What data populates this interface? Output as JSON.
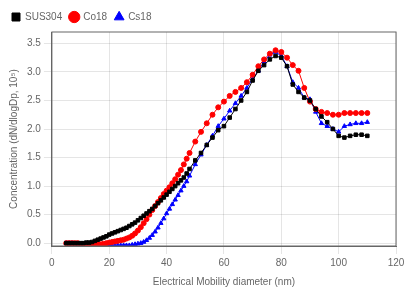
{
  "chart_data": {
    "type": "line",
    "xlabel": "Electrical Mobility diameter (nm)",
    "ylabel": "Concentration (dN/dlogDp, 10⁵)",
    "x": [
      5,
      6,
      7,
      8,
      9,
      10,
      11,
      12,
      13,
      14,
      15,
      16,
      17,
      18,
      19,
      20,
      21,
      22,
      23,
      24,
      25,
      26,
      27,
      28,
      29,
      30,
      31,
      32,
      33,
      34,
      35,
      36,
      37,
      38,
      39,
      40,
      41,
      42,
      43,
      44,
      45,
      46,
      47,
      48,
      50,
      52,
      54,
      56,
      58,
      60,
      62,
      64,
      66,
      68,
      70,
      72,
      74,
      76,
      78,
      80,
      82,
      84,
      86,
      88,
      90,
      92,
      94,
      96,
      98,
      100,
      102,
      104,
      106,
      108,
      110
    ],
    "series": [
      {
        "name": "SUS304",
        "color": "black",
        "marker": "square",
        "values": [
          0.0,
          0.0,
          0.0,
          0.0,
          0.0,
          0.0,
          0.0,
          0.01,
          0.01,
          0.02,
          0.04,
          0.06,
          0.08,
          0.1,
          0.12,
          0.15,
          0.17,
          0.19,
          0.21,
          0.23,
          0.25,
          0.27,
          0.3,
          0.33,
          0.36,
          0.4,
          0.44,
          0.48,
          0.52,
          0.56,
          0.6,
          0.65,
          0.7,
          0.75,
          0.8,
          0.85,
          0.9,
          0.95,
          1.0,
          1.05,
          1.1,
          1.15,
          1.22,
          1.3,
          1.45,
          1.58,
          1.72,
          1.85,
          1.98,
          2.05,
          2.2,
          2.35,
          2.5,
          2.65,
          2.85,
          3.02,
          3.12,
          3.22,
          3.28,
          3.25,
          3.1,
          2.78,
          2.65,
          2.55,
          2.5,
          2.35,
          2.22,
          2.12,
          2.0,
          1.88,
          1.85,
          1.88,
          1.9,
          1.9,
          1.88
        ]
      },
      {
        "name": "Co18",
        "color": "red",
        "marker": "circle",
        "values": [
          0.0,
          0.0,
          0.0,
          0.0,
          0.0,
          -0.02,
          -0.02,
          -0.02,
          -0.02,
          -0.02,
          -0.02,
          -0.02,
          -0.02,
          -0.01,
          0.0,
          0.01,
          0.02,
          0.03,
          0.04,
          0.05,
          0.06,
          0.08,
          0.1,
          0.13,
          0.17,
          0.22,
          0.28,
          0.35,
          0.42,
          0.5,
          0.58,
          0.65,
          0.72,
          0.79,
          0.86,
          0.92,
          0.98,
          1.05,
          1.12,
          1.2,
          1.28,
          1.38,
          1.48,
          1.58,
          1.78,
          1.95,
          2.1,
          2.25,
          2.38,
          2.48,
          2.58,
          2.65,
          2.72,
          2.82,
          2.95,
          3.1,
          3.22,
          3.32,
          3.38,
          3.35,
          3.25,
          3.12,
          3.02,
          2.72,
          2.48,
          2.35,
          2.3,
          2.28,
          2.25,
          2.25,
          2.28,
          2.28,
          2.28,
          2.28,
          2.28
        ]
      },
      {
        "name": "Cs18",
        "color": "blue",
        "marker": "triangle",
        "values": [
          0.0,
          0.0,
          0.0,
          -0.02,
          -0.02,
          -0.02,
          -0.02,
          -0.03,
          -0.04,
          -0.04,
          -0.04,
          -0.04,
          -0.04,
          -0.04,
          -0.04,
          -0.04,
          -0.04,
          -0.04,
          -0.04,
          -0.04,
          -0.04,
          -0.04,
          -0.04,
          -0.03,
          -0.02,
          -0.01,
          0.0,
          0.02,
          0.05,
          0.09,
          0.14,
          0.2,
          0.27,
          0.35,
          0.43,
          0.52,
          0.6,
          0.68,
          0.76,
          0.84,
          0.92,
          1.0,
          1.08,
          1.18,
          1.38,
          1.55,
          1.72,
          1.88,
          2.05,
          2.18,
          2.32,
          2.45,
          2.58,
          2.72,
          2.88,
          3.02,
          3.18,
          3.3,
          3.35,
          3.28,
          3.1,
          2.82,
          2.72,
          2.55,
          2.52,
          2.3,
          2.1,
          2.05,
          2.0,
          1.95,
          2.05,
          2.08,
          2.1,
          2.1,
          2.12
        ]
      }
    ],
    "xlim": [
      0,
      120
    ],
    "xticks": [
      0,
      20,
      40,
      60,
      80,
      100,
      120
    ],
    "ylim": [
      -0.05,
      3.7
    ],
    "yticks": [
      {
        "value": 0.0,
        "label": "0.0"
      },
      0.5,
      {
        "value": 1.0,
        "label": "1.0"
      },
      1.5,
      {
        "value": 2.0,
        "label": "2.0"
      },
      2.5,
      {
        "value": 3.0,
        "label": "3.0"
      },
      3.5
    ],
    "grid": true,
    "legend": "upper left"
  }
}
